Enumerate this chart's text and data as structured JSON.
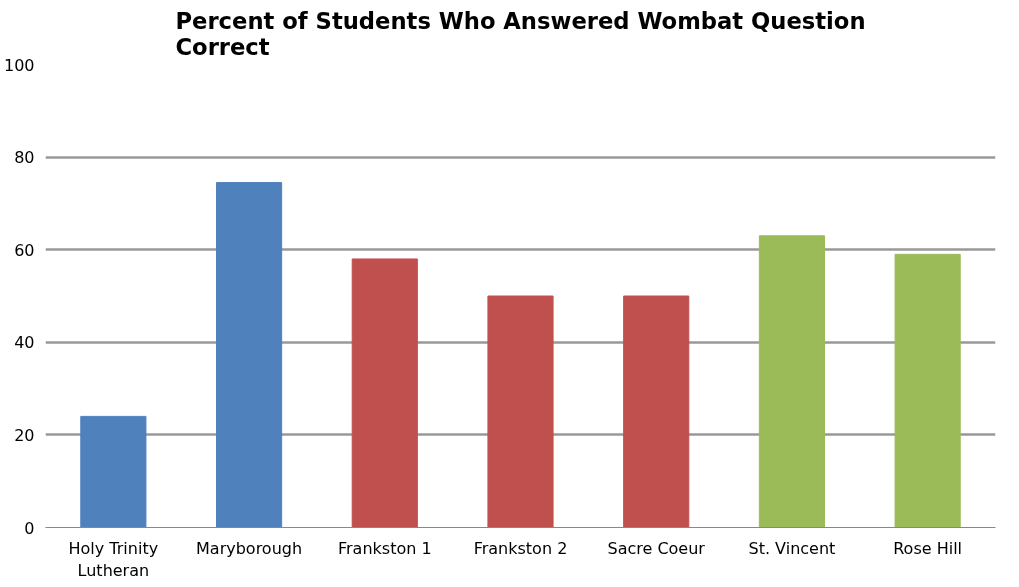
{
  "chart_data": {
    "type": "bar",
    "title": "Percent of Students Who Answered Wombat Question Correct",
    "categories": [
      "Holy Trinity Lutheran",
      "Maryborough",
      "Frankston 1",
      "Frankston 2",
      "Sacre Coeur",
      "St. Vincent",
      "Rose Hill"
    ],
    "values": [
      24,
      74.5,
      58,
      50,
      50,
      63,
      59
    ],
    "colors": [
      "#4f81bd",
      "#4f81bd",
      "#c0504d",
      "#c0504d",
      "#c0504d",
      "#9bbb59",
      "#9bbb59"
    ],
    "ylim": [
      0,
      100
    ],
    "yticks": [
      0,
      20,
      40,
      60,
      80,
      100
    ],
    "grid": "y"
  }
}
